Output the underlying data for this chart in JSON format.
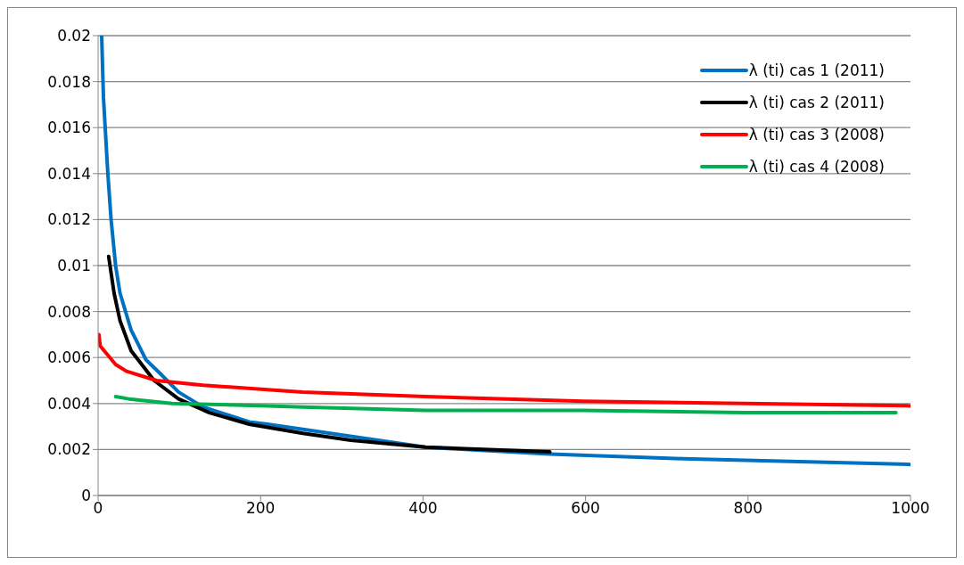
{
  "chart_data": {
    "type": "line",
    "series": [
      {
        "name": "λ (ti) cas 1 (2011)",
        "color": "#0070c0",
        "x": [
          4.4,
          6.6,
          12,
          16,
          21.6,
          27,
          40.6,
          59,
          76.5,
          99,
          129,
          186,
          208.6,
          403,
          556,
          719.5,
          1000
        ],
        "values": [
          0.02,
          0.0173,
          0.014,
          0.012,
          0.00998,
          0.0088,
          0.0072,
          0.0059,
          0.0053,
          0.0045,
          0.00385,
          0.0032,
          0.0031,
          0.0021,
          0.0018,
          0.0016,
          0.00135
        ]
      },
      {
        "name": "λ (ti) cas 2 (2011)",
        "color": "#000000",
        "x": [
          13,
          19.7,
          27,
          40.6,
          69,
          99,
          137,
          186,
          252,
          311,
          403,
          556
        ],
        "values": [
          0.0104,
          0.0088,
          0.0076,
          0.0063,
          0.005,
          0.0042,
          0.0036,
          0.0031,
          0.0027,
          0.0024,
          0.0021,
          0.0019
        ]
      },
      {
        "name": "λ (ti) cas 3 (2008)",
        "color": "#ff0000",
        "x": [
          1,
          2.6,
          21.6,
          35,
          72,
          129,
          208.6,
          252,
          403,
          597,
          796,
          1000
        ],
        "values": [
          0.007,
          0.0065,
          0.0057,
          0.0054,
          0.005,
          0.0048,
          0.0046,
          0.0045,
          0.0043,
          0.0041,
          0.004,
          0.0039
        ]
      },
      {
        "name": "λ (ti) cas 4 (2008)",
        "color": "#00b050",
        "x": [
          21.6,
          38,
          91,
          208.6,
          252,
          403,
          597,
          796,
          982
        ],
        "values": [
          0.0043,
          0.0042,
          0.004,
          0.0039,
          0.00385,
          0.0037,
          0.0037,
          0.0036,
          0.0036
        ]
      }
    ],
    "xlim": [
      0,
      1000
    ],
    "xticks": [
      0,
      200,
      400,
      600,
      800,
      1000
    ],
    "ylim": [
      0,
      0.02
    ],
    "yticks": [
      0,
      0.002,
      0.004,
      0.006,
      0.008,
      0.01,
      0.012,
      0.014,
      0.016,
      0.018,
      0.02
    ],
    "grid": "y",
    "legend": "top right",
    "marker": "none",
    "line_style": "solid"
  }
}
